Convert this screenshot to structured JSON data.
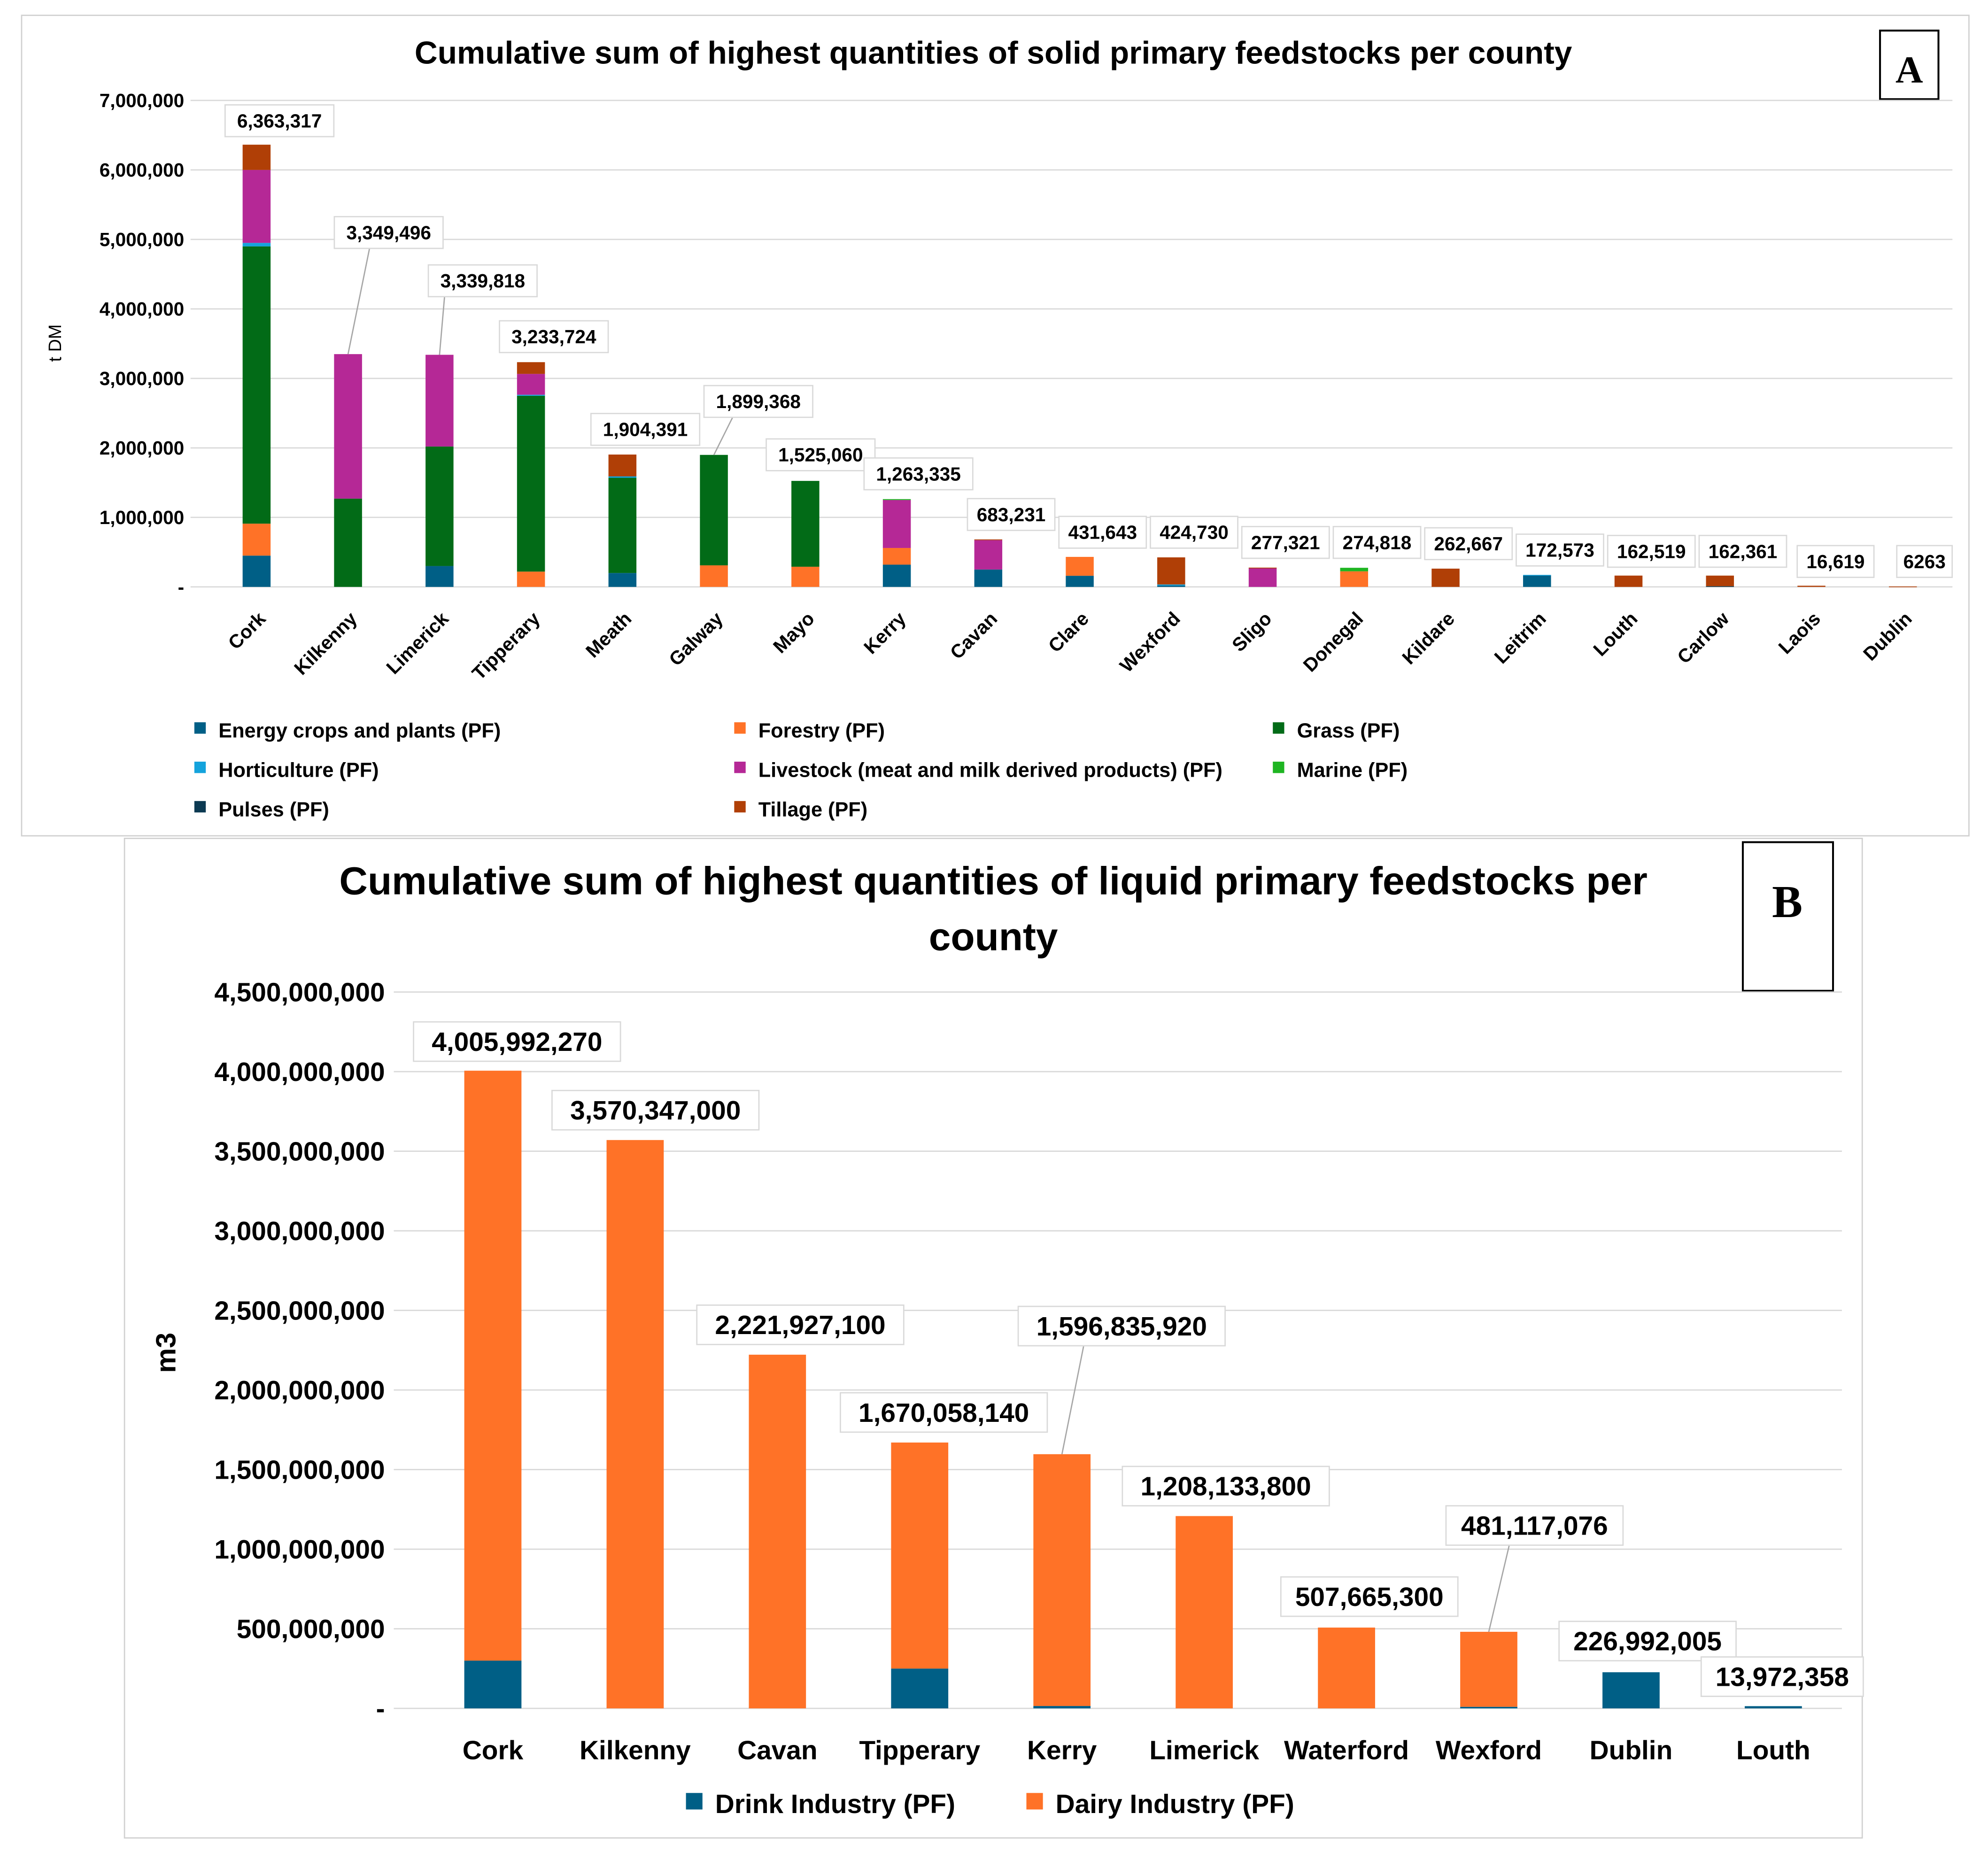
{
  "chart_data": [
    {
      "type": "bar",
      "stacked": true,
      "panel_label": "A",
      "title": "Cumulative sum of highest quantities of solid primary feedstocks per county",
      "xlabel": "",
      "ylabel": "t DM",
      "ylim": [
        0,
        7000000
      ],
      "yticks": [
        "-",
        "1,000,000",
        "2,000,000",
        "3,000,000",
        "4,000,000",
        "5,000,000",
        "6,000,000",
        "7,000,000"
      ],
      "grid": true,
      "legend_position": "bottom",
      "categories": [
        "Cork",
        "Kilkenny",
        "Limerick",
        "Tipperary",
        "Meath",
        "Galway",
        "Mayo",
        "Kerry",
        "Cavan",
        "Clare",
        "Wexford",
        "Sligo",
        "Donegal",
        "Kildare",
        "Leitrim",
        "Louth",
        "Carlow",
        "Laois",
        "Dublin"
      ],
      "totals_labels": [
        "6,363,317",
        "3,349,496",
        "3,339,818",
        "3,233,724",
        "1,904,391",
        "1,899,368",
        "1,525,060",
        "1,263,335",
        "683,231",
        "431,643",
        "424,730",
        "277,321",
        "274,818",
        "262,667",
        "172,573",
        "162,519",
        "162,361",
        "16,619",
        "6263"
      ],
      "series": [
        {
          "name": "Energy crops and plants (PF)",
          "color": "#005f86",
          "values": [
            450000,
            0,
            300000,
            0,
            200000,
            0,
            0,
            320000,
            250000,
            160000,
            20000,
            0,
            0,
            0,
            165000,
            0,
            0,
            0,
            0
          ]
        },
        {
          "name": "Forestry (PF)",
          "color": "#ff7227",
          "values": [
            460000,
            0,
            0,
            220000,
            0,
            310000,
            290000,
            240000,
            0,
            271643,
            0,
            0,
            224000,
            0,
            0,
            0,
            0,
            0,
            0
          ]
        },
        {
          "name": "Grass (PF)",
          "color": "#026b17",
          "values": [
            3990000,
            1270000,
            1720000,
            2530000,
            1370000,
            1589368,
            1235060,
            0,
            0,
            0,
            0,
            0,
            0,
            0,
            0,
            0,
            0,
            0,
            0
          ]
        },
        {
          "name": "Horticulture (PF)",
          "color": "#14a3dc",
          "values": [
            50000,
            0,
            0,
            14724,
            20000,
            0,
            0,
            0,
            0,
            0,
            14730,
            0,
            0,
            0,
            7573,
            0,
            0,
            0,
            0
          ]
        },
        {
          "name": "Livestock (meat and milk derived products) (PF)",
          "color": "#b52896",
          "values": [
            1050000,
            2079496,
            1319818,
            300000,
            0,
            0,
            0,
            690335,
            423231,
            0,
            0,
            270321,
            0,
            0,
            0,
            0,
            0,
            0,
            0
          ]
        },
        {
          "name": "Marine (PF)",
          "color": "#1fb522",
          "values": [
            0,
            0,
            0,
            0,
            0,
            0,
            0,
            13000,
            0,
            0,
            0,
            0,
            50818,
            0,
            0,
            0,
            0,
            0,
            0
          ]
        },
        {
          "name": "Pulses (PF)",
          "color": "#0c3a52",
          "values": [
            0,
            0,
            0,
            0,
            0,
            0,
            0,
            0,
            0,
            0,
            0,
            0,
            0,
            0,
            0,
            0,
            10000,
            0,
            0
          ]
        },
        {
          "name": "Tillage (PF)",
          "color": "#b03f06",
          "values": [
            363317,
            0,
            0,
            169000,
            314391,
            0,
            0,
            0,
            10000,
            0,
            390000,
            7000,
            0,
            262667,
            0,
            162519,
            152361,
            16619,
            6263
          ]
        }
      ]
    },
    {
      "type": "bar",
      "stacked": true,
      "panel_label": "B",
      "title_lines": [
        "Cumulative sum of highest quantities of liquid primary feedstocks per",
        "county"
      ],
      "xlabel": "",
      "ylabel": "m3",
      "ylim": [
        0,
        4500000000
      ],
      "yticks": [
        "-",
        "500,000,000",
        "1,000,000,000",
        "1,500,000,000",
        "2,000,000,000",
        "2,500,000,000",
        "3,000,000,000",
        "3,500,000,000",
        "4,000,000,000",
        "4,500,000,000"
      ],
      "grid": true,
      "legend_position": "bottom",
      "categories": [
        "Cork",
        "Kilkenny",
        "Cavan",
        "Tipperary",
        "Kerry",
        "Limerick",
        "Waterford",
        "Wexford",
        "Dublin",
        "Louth"
      ],
      "totals_labels": [
        "4,005,992,270",
        "3,570,347,000",
        "2,221,927,100",
        "1,670,058,140",
        "1,596,835,920",
        "1,208,133,800",
        "507,665,300",
        "481,117,076",
        "226,992,005",
        "13,972,358"
      ],
      "series": [
        {
          "name": "Drink Industry  (PF)",
          "color": "#005f86",
          "values": [
            300000000,
            0,
            0,
            250000000,
            15000000,
            0,
            0,
            10000000,
            226992005,
            13972358
          ]
        },
        {
          "name": "Dairy Industry  (PF)",
          "color": "#ff7227",
          "values": [
            3705992270,
            3570347000,
            2221927100,
            1420058140,
            1581835920,
            1208133800,
            507665300,
            471117076,
            0,
            0
          ]
        }
      ]
    }
  ]
}
